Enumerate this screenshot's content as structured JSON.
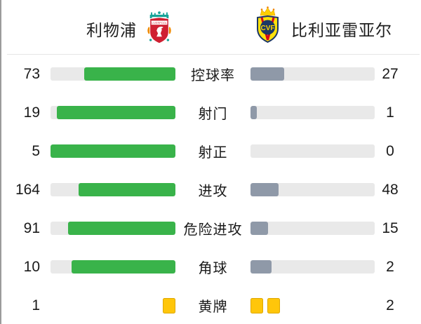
{
  "header": {
    "home_team": "利物浦",
    "away_team": "比利亚雷亚尔",
    "home_crest_icon": "liverpool-crest",
    "away_crest_icon": "villarreal-crest",
    "home_crest_text": "LIVERPOOL",
    "away_crest_text": "CVF"
  },
  "colors": {
    "home_bar": "#39b34a",
    "away_bar": "#8f99a8",
    "bar_track": "#e9e9e9",
    "yellow_card": "#ffc60a",
    "text": "#1a1a1a",
    "divider": "#e6e6e6"
  },
  "chart_data": {
    "type": "bar",
    "subtype": "mirrored-comparison-horizontal",
    "title": "利物浦 vs 比利亚雷亚尔",
    "categories": [
      "控球率",
      "射门",
      "射正",
      "进攻",
      "危险进攻",
      "角球",
      "黄牌"
    ],
    "series": [
      {
        "name": "利物浦",
        "values": [
          73,
          19,
          5,
          164,
          91,
          10,
          1
        ]
      },
      {
        "name": "比利亚雷亚尔",
        "values": [
          27,
          1,
          0,
          48,
          15,
          2,
          2
        ]
      }
    ],
    "legend_position": "top",
    "grid": false,
    "rows": [
      {
        "label": "控球率",
        "home": 73,
        "away": 27,
        "style": "bars"
      },
      {
        "label": "射门",
        "home": 19,
        "away": 1,
        "style": "bars"
      },
      {
        "label": "射正",
        "home": 5,
        "away": 0,
        "style": "bars"
      },
      {
        "label": "进攻",
        "home": 164,
        "away": 48,
        "style": "bars"
      },
      {
        "label": "危险进攻",
        "home": 91,
        "away": 15,
        "style": "bars"
      },
      {
        "label": "角球",
        "home": 10,
        "away": 2,
        "style": "bars"
      },
      {
        "label": "黄牌",
        "home": 1,
        "away": 2,
        "style": "cards"
      }
    ]
  }
}
